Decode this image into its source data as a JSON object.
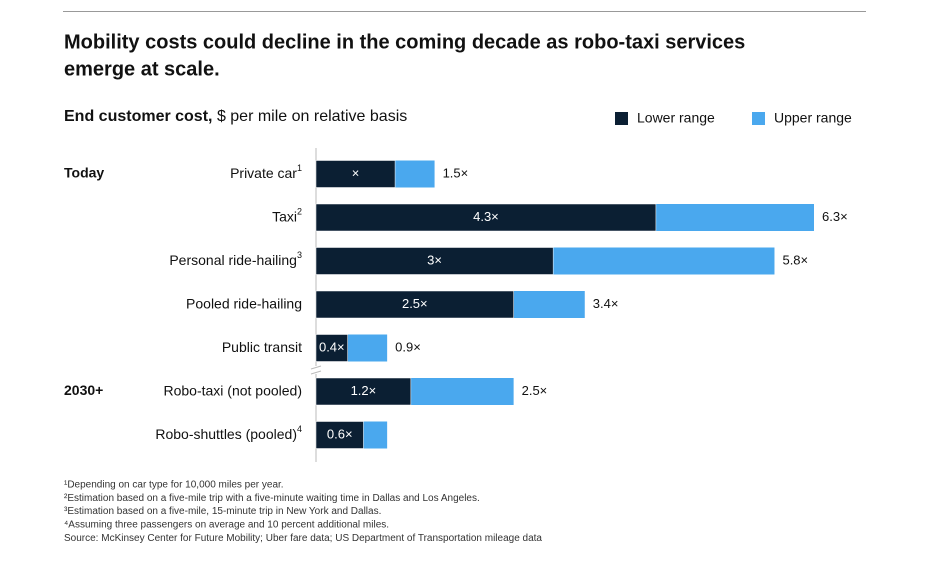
{
  "chart_data": {
    "type": "range_bar",
    "title_lines": [
      "Mobility costs could decline in the coming decade as robo-taxi services",
      "emerge at scale."
    ],
    "subtitle_bold": "End customer cost,",
    "subtitle": "$ per mile on relative basis",
    "groups": [
      {
        "label": "Today",
        "row": 0
      },
      {
        "label": "2030+",
        "row": 5
      }
    ],
    "categories": [
      "Private car",
      "Taxi",
      "Personal ride-hailing",
      "Pooled ride-hailing",
      "Public transit",
      "Robo-taxi (not pooled)",
      "Robo-shuttles (pooled)"
    ],
    "category_notes": [
      "1",
      "2",
      "3",
      null,
      null,
      null,
      "4"
    ],
    "series": [
      {
        "name": "Lower range",
        "color": "#0b1f33",
        "values": [
          1,
          4.3,
          3,
          2.5,
          0.4,
          1.2,
          0.6
        ],
        "value_labels": [
          "×",
          "4.3×",
          "3×",
          "2.5×",
          "0.4×",
          "1.2×",
          "0.6×"
        ]
      },
      {
        "name": "Upper range",
        "color": "#4aa8ee",
        "values": [
          1.5,
          6.3,
          5.8,
          3.4,
          0.9,
          2.5,
          0.9
        ],
        "value_labels": [
          "1.5×",
          "6.3×",
          "5.8×",
          "3.4×",
          "0.9×",
          "2.5×",
          null
        ]
      }
    ],
    "xlim": [
      0,
      6.3
    ],
    "footnotes": [
      "¹Depending on car type for 10,000 miles per year.",
      "²Estimation based on a five-mile trip with a five-minute waiting time in Dallas and Los Angeles.",
      "³Estimation based on a five-mile, 15-minute trip in New York and Dallas.",
      "⁴Assuming three passengers on average and 10 percent additional miles.",
      " Source: McKinsey Center for Future Mobility; Uber fare data; US Department of Transportation mileage data"
    ]
  }
}
